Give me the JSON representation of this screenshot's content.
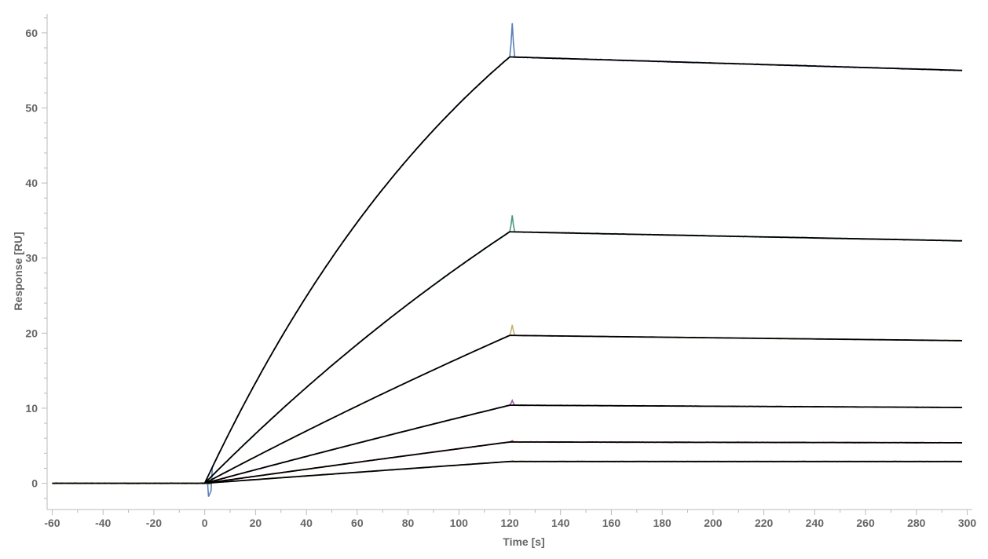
{
  "chart_data": {
    "type": "line",
    "title": "",
    "xlabel": "Time [s]",
    "ylabel": "Response [RU]",
    "xlim": [
      -62,
      302
    ],
    "ylim": [
      -3.5,
      62.5
    ],
    "x_ticks": [
      -60,
      -40,
      -20,
      0,
      20,
      40,
      60,
      80,
      100,
      120,
      140,
      160,
      180,
      200,
      220,
      240,
      260,
      280,
      300
    ],
    "y_ticks": [
      0,
      10,
      20,
      30,
      40,
      50,
      60
    ],
    "x_minor_step": 10,
    "y_minor_step": 2,
    "grid": false,
    "legend": "none",
    "association_end": 120,
    "dissociation_end": 298,
    "fit_color": "#000000",
    "series": [
      {
        "color": "#5b7fb8",
        "plateau": 56.8,
        "assoc_kobs": 0.0076,
        "dissoc_end": 55.0,
        "inj_spike": 4.5,
        "inj_dip": -2.8,
        "noise": 0.12
      },
      {
        "color": "#4a9a78",
        "plateau": 33.5,
        "assoc_kobs": 0.0035,
        "dissoc_end": 32.3,
        "inj_spike": 2.2,
        "inj_dip": -0.5,
        "noise": 0.1
      },
      {
        "color": "#c9b377",
        "plateau": 19.7,
        "assoc_kobs": 0.0015,
        "dissoc_end": 19.0,
        "inj_spike": 1.4,
        "inj_dip": -0.3,
        "noise": 0.08
      },
      {
        "color": "#9b5aa8",
        "plateau": 10.4,
        "assoc_kobs": 0.0008,
        "dissoc_end": 10.1,
        "inj_spike": 0.6,
        "inj_dip": -0.2,
        "noise": 0.08
      },
      {
        "color": "#c0504d",
        "plateau": 5.5,
        "assoc_kobs": 0.0005,
        "dissoc_end": 5.4,
        "inj_spike": 0.2,
        "inj_dip": -0.1,
        "noise": 0.08
      },
      {
        "color": "#6aa84f",
        "plateau": 2.9,
        "assoc_kobs": 0.0003,
        "dissoc_end": 2.9,
        "inj_spike": 0.1,
        "inj_dip": -0.1,
        "noise": 0.08
      }
    ]
  }
}
